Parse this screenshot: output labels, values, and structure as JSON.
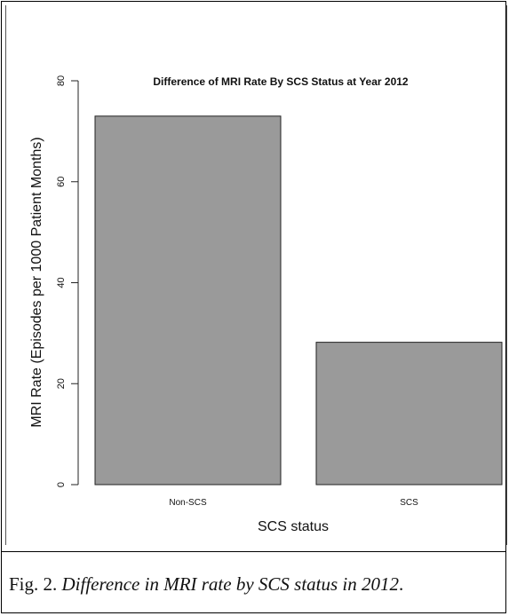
{
  "chart_data": {
    "type": "bar",
    "title": "Difference of MRI Rate By SCS Status at Year 2012",
    "xlabel": "SCS status",
    "ylabel": "MRI Rate (Episodes per 1000 Patient Months)",
    "categories": [
      "Non-SCS",
      "SCS"
    ],
    "values": [
      73,
      28.2
    ],
    "ylim": [
      0,
      80
    ],
    "yticks": [
      0,
      20,
      40,
      60,
      80
    ],
    "bar_color": "#9a9a9a",
    "grid": false,
    "legend": "none"
  },
  "caption": {
    "prefix": "Fig. 2. ",
    "text": "Difference in MRI rate by SCS status in 2012",
    "suffix": "."
  }
}
